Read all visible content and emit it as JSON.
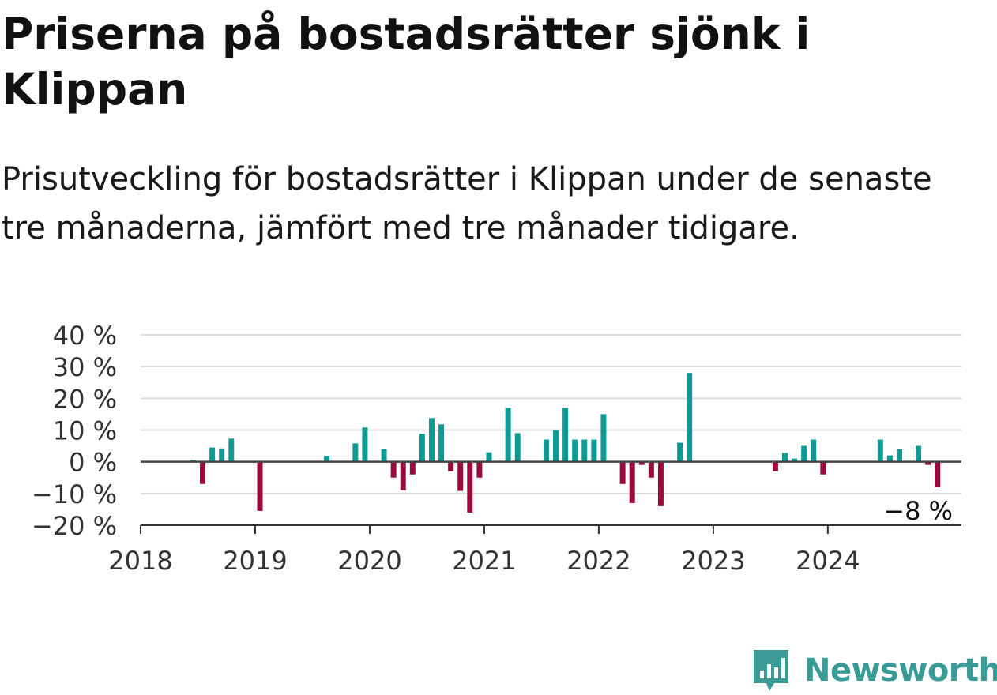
{
  "header": {
    "title": "Priserna på bostadsrätter sjönk i Klippan",
    "subtitle": "Prisutveckling för bostadsrätter i Klippan under de senaste tre månaderna, jämfört med tre månader tidigare."
  },
  "branding": {
    "logo_text": "Newsworthy",
    "logo_icon": "bar-chart-speech-bubble-icon",
    "color": "#3a9b96"
  },
  "chart_data": {
    "type": "bar",
    "title": "Priserna på bostadsrätter sjönk i Klippan",
    "xlabel": "",
    "ylabel": "",
    "ylim": [
      -20,
      40
    ],
    "yticks": [
      40,
      30,
      20,
      10,
      0,
      -10,
      -20
    ],
    "ytick_labels": [
      "40 %",
      "30 %",
      "20 %",
      "10 %",
      "0 %",
      "−10 %",
      "−20 %"
    ],
    "xlim": [
      "2018-01",
      "2025-03"
    ],
    "xticks": [
      "2018-01",
      "2019-01",
      "2020-01",
      "2021-01",
      "2022-01",
      "2023-01",
      "2024-01"
    ],
    "xtick_labels": [
      "2018",
      "2019",
      "2020",
      "2021",
      "2022",
      "2023",
      "2024"
    ],
    "grid": true,
    "colors": {
      "positive": "#0f9a93",
      "negative": "#9b0a3e",
      "zero_line": "#444444",
      "grid": "#dddddd"
    },
    "annotation": {
      "x": "2024-10",
      "text": "−8 %"
    },
    "x": [
      "2018-06",
      "2018-07",
      "2018-08",
      "2018-09",
      "2018-10",
      "2019-01",
      "2019-08",
      "2019-11",
      "2019-12",
      "2020-02",
      "2020-03",
      "2020-04",
      "2020-05",
      "2020-06",
      "2020-07",
      "2020-08",
      "2020-09",
      "2020-10",
      "2020-11",
      "2020-12",
      "2021-01",
      "2021-03",
      "2021-04",
      "2021-07",
      "2021-08",
      "2021-09",
      "2021-10",
      "2021-11",
      "2021-12",
      "2022-01",
      "2022-03",
      "2022-04",
      "2022-05",
      "2022-06",
      "2022-07",
      "2022-09",
      "2022-10",
      "2023-07",
      "2023-08",
      "2023-09",
      "2023-10",
      "2023-11",
      "2023-12",
      "2024-06",
      "2024-07",
      "2024-08",
      "2024-10",
      "2024-11",
      "2024-12"
    ],
    "values": [
      0.5,
      -7,
      4.5,
      4.2,
      7.3,
      -15.5,
      1.8,
      5.8,
      10.8,
      4,
      -5,
      -9,
      -4,
      8.8,
      13.8,
      11.8,
      -3,
      -9.2,
      -16,
      -5,
      3,
      17,
      9,
      7,
      10,
      17,
      7,
      7,
      7,
      15,
      -7,
      -13,
      -1,
      -5,
      -14,
      6,
      28,
      -3,
      2.8,
      1,
      5,
      7,
      -4,
      7,
      2,
      4,
      5,
      -1,
      -8
    ]
  }
}
